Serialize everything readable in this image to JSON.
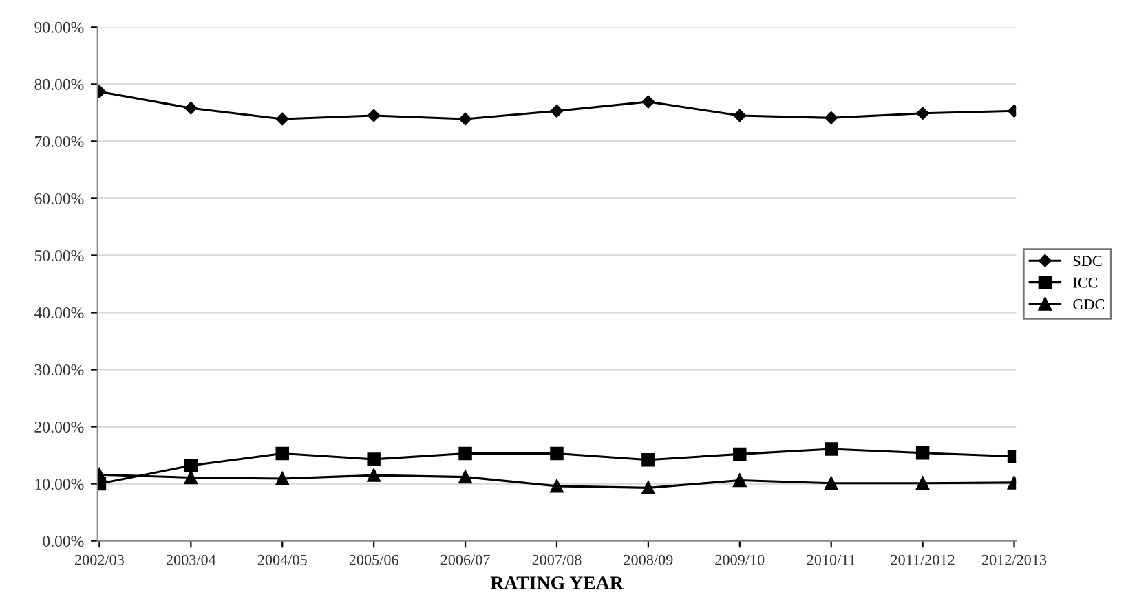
{
  "chart_data": {
    "type": "line",
    "xlabel": "RATING YEAR",
    "categories": [
      "2002/03",
      "2003/04",
      "2004/05",
      "2005/06",
      "2006/07",
      "2007/08",
      "2008/09",
      "2009/10",
      "2010/11",
      "2011/2012",
      "2012/2013"
    ],
    "series": [
      {
        "name": "SDC",
        "color": "#000000",
        "marker": "diamond",
        "values": [
          78.7,
          75.8,
          73.9,
          74.5,
          73.9,
          75.3,
          76.9,
          74.5,
          74.1,
          74.9,
          75.3
        ]
      },
      {
        "name": "ICC",
        "color": "#000000",
        "marker": "square",
        "values": [
          10.0,
          13.2,
          15.3,
          14.3,
          15.3,
          15.3,
          14.2,
          15.2,
          16.1,
          15.4,
          14.8
        ]
      },
      {
        "name": "GDC",
        "color": "#000000",
        "marker": "triangle",
        "values": [
          11.6,
          11.1,
          10.9,
          11.5,
          11.2,
          9.6,
          9.3,
          10.6,
          10.1,
          10.1,
          10.2
        ]
      }
    ],
    "ylim": [
      0,
      90
    ],
    "yticks": [
      {
        "value": 0,
        "label": "0.00%"
      },
      {
        "value": 10,
        "label": "10.00%"
      },
      {
        "value": 20,
        "label": "20.00%"
      },
      {
        "value": 30,
        "label": "30.00%"
      },
      {
        "value": 40,
        "label": "40.00%"
      },
      {
        "value": 50,
        "label": "50.00%"
      },
      {
        "value": 60,
        "label": "60.00%"
      },
      {
        "value": 70,
        "label": "70.00%"
      },
      {
        "value": 80,
        "label": "80.00%"
      },
      {
        "value": 90,
        "label": "90.00%"
      }
    ],
    "grid": "y",
    "legend": "right",
    "line_style": "solid"
  }
}
